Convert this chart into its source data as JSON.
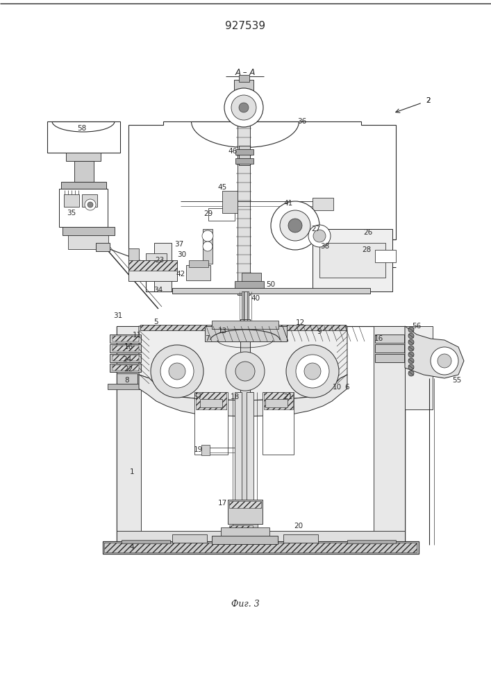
{
  "title": "927539",
  "fig_caption": "Фиг. 3",
  "bg_color": "#ffffff",
  "line_color": "#2a2a2a",
  "lw": 0.8,
  "figsize": [
    7.07,
    10.0
  ],
  "dpi": 100
}
